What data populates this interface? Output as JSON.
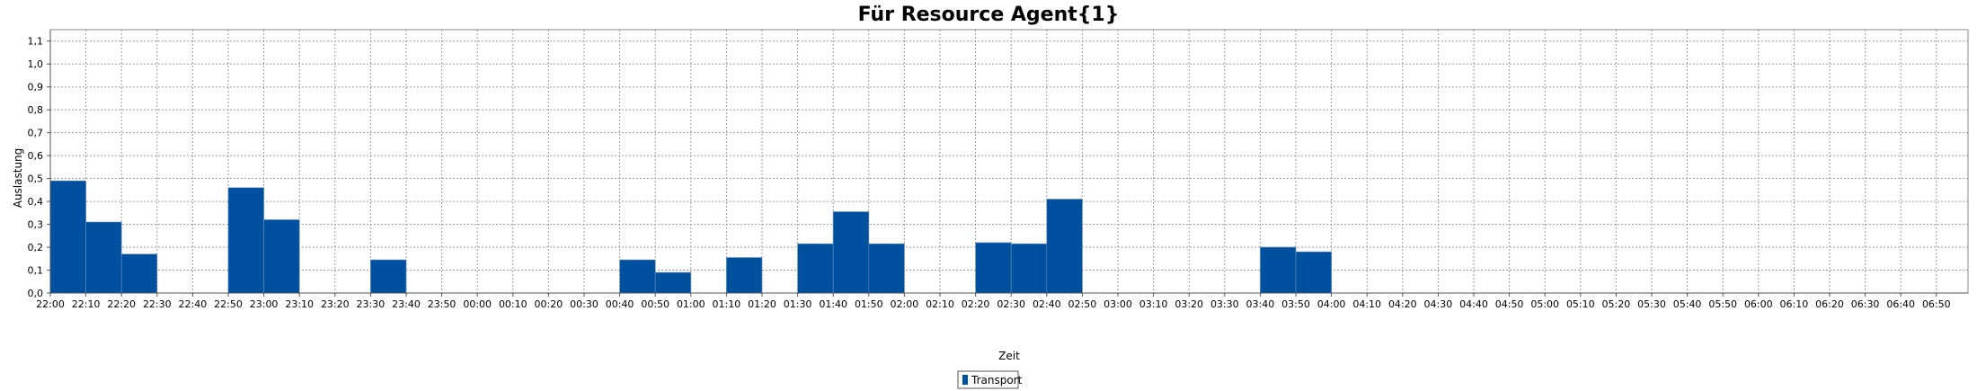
{
  "chart_data": {
    "type": "bar",
    "title": "Für Resource Agent{1}",
    "xlabel": "Zeit",
    "ylabel": "Auslastung",
    "ylim": [
      0,
      1.15
    ],
    "yticks": [
      "0,0",
      "0,1",
      "0,2",
      "0,3",
      "0,4",
      "0,5",
      "0,6",
      "0,7",
      "0,8",
      "0,9",
      "1,0",
      "1,1"
    ],
    "categories": [
      "22:00",
      "22:10",
      "22:20",
      "22:30",
      "22:40",
      "22:50",
      "23:00",
      "23:10",
      "23:20",
      "23:30",
      "23:40",
      "23:50",
      "00:00",
      "00:10",
      "00:20",
      "00:30",
      "00:40",
      "00:50",
      "01:00",
      "01:10",
      "01:20",
      "01:30",
      "01:40",
      "01:50",
      "02:00",
      "02:10",
      "02:20",
      "02:30",
      "02:40",
      "02:50",
      "03:00",
      "03:10",
      "03:20",
      "03:30",
      "03:40",
      "03:50",
      "04:00",
      "04:10",
      "04:20",
      "04:30",
      "04:40",
      "04:50",
      "05:00",
      "05:10",
      "05:20",
      "05:30",
      "05:40",
      "05:50",
      "06:00",
      "06:10",
      "06:20",
      "06:30",
      "06:40",
      "06:50"
    ],
    "series": [
      {
        "name": "Transport",
        "color": "#0050A0",
        "values": [
          0.49,
          0.31,
          0.17,
          0,
          0,
          0.46,
          0.32,
          0,
          0,
          0.145,
          0,
          0,
          0,
          0,
          0,
          0,
          0.145,
          0.09,
          0,
          0.155,
          0,
          0.215,
          0.355,
          0.215,
          0,
          0,
          0.22,
          0.215,
          0.41,
          0,
          0,
          0,
          0,
          0,
          0.2,
          0.18,
          0,
          0,
          0,
          0,
          0,
          0,
          0,
          0,
          0,
          0,
          0,
          0,
          0,
          0,
          0,
          0,
          0,
          0
        ]
      }
    ],
    "grid": true,
    "legend": "bottom-center"
  }
}
